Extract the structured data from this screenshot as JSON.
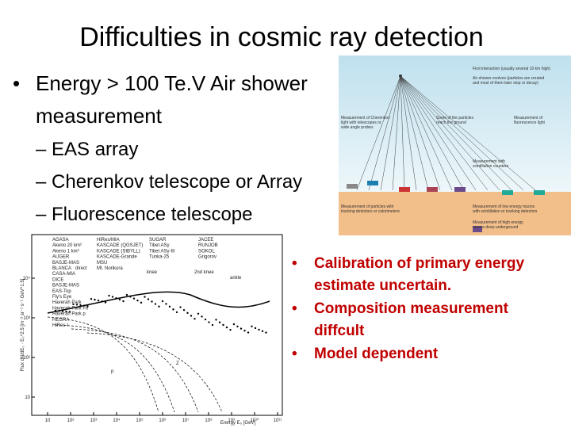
{
  "slide": {
    "title": "Difficulties in cosmic ray detection",
    "bullet": [
      "Energy > 100 Te.V Air shower",
      "measurement"
    ],
    "sub_bullets": [
      "– EAS array",
      "– Cherenkov telescope or Array",
      "– Fluorescence telescope"
    ],
    "right_bullets": [
      [
        "Calibration of primary energy",
        "estimate uncertain."
      ],
      [
        "Composition measurement",
        "diffcult"
      ],
      [
        "Model dependent"
      ]
    ]
  },
  "diagram": {
    "labels": [
      "First interaction (usually several 10 km high)",
      "Air shower evolves (particles are created",
      "and most of them later stop or decay)",
      "Measurement of Cherenkov",
      "light with telescopes or",
      "wide angle probes",
      "Some of the particles",
      "reach the ground",
      "Measurement of",
      "fluorescence light",
      "Measurement with",
      "scintillation counters",
      "Measurement of particles with",
      "tracking detectors or calorimeters",
      "Measurement of low energy muons",
      "with scintillation or tracking detectors",
      "Measurement of high energy",
      "muons deep underground"
    ]
  },
  "plot": {
    "y_label": "Flux dN/dE₀ · E₀^2.5 [m⁻² sr⁻¹ s⁻¹ GeV^1.5]",
    "x_label": "Energy E₀ [GeV]",
    "annotations": [
      "knee",
      "2nd knee",
      "ankle",
      "direct",
      "Z",
      "p"
    ],
    "legend_left": [
      "AGASA",
      "Akeno 20 km²",
      "Akeno 1 km²",
      "AUGER",
      "BASJE-MAS",
      "BLANCA",
      "CASA-MIA",
      "DICE",
      "BASJE-MAS",
      "EAS-Top",
      "Fly's Eye",
      "Haverah Park",
      "Haverah Park Fe",
      "Haverah Park p",
      "HEGRA",
      "HiRes-I"
    ],
    "legend_mid": [
      "HiRes/MIA",
      "KASCADE (QGSJET)",
      "KASCADE (SIBYLL)",
      "KASCADE-Grande",
      "MSU",
      "Mt. Norikura"
    ],
    "legend_right": [
      "SUGAR",
      "Tibet ASγ",
      "Tibet ASγ-III",
      "Tunka-25"
    ],
    "legend_far": [
      "JACEE",
      "RUNJOB",
      "SOKOL",
      "Grigorov"
    ],
    "x_ticks": [
      "10",
      "10²",
      "10³",
      "10⁴",
      "10⁵",
      "10⁶",
      "10⁷",
      "10⁸",
      "10⁹",
      "10¹⁰",
      "10¹¹"
    ],
    "y_ticks": [
      "10⁴",
      "10³",
      "10²",
      "10"
    ]
  }
}
